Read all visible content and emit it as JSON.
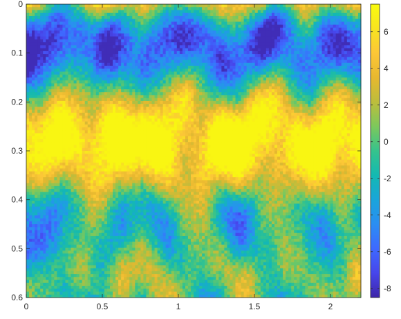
{
  "chart_data": {
    "type": "heatmap",
    "title": "",
    "xlabel": "",
    "ylabel": "",
    "xlim": [
      0,
      2.2
    ],
    "ylim": [
      0,
      0.6
    ],
    "y_direction": "reversed",
    "x_ticks": [
      0,
      0.5,
      1,
      1.5,
      2
    ],
    "x_tick_labels": [
      "0",
      "0.5",
      "1",
      "1.5",
      "2"
    ],
    "y_ticks": [
      0,
      0.1,
      0.2,
      0.3,
      0.4,
      0.5,
      0.6
    ],
    "y_tick_labels": [
      "0",
      "0.1",
      "0.2",
      "0.3",
      "0.4",
      "0.5",
      "0.6"
    ],
    "colorbar": {
      "clim": [
        -8.5,
        7.5
      ],
      "ticks": [
        -8,
        -6,
        -4,
        -2,
        0,
        2,
        4,
        6
      ],
      "tick_labels": [
        "-8",
        "-6",
        "-4",
        "-2",
        "0",
        "2",
        "4",
        "6"
      ],
      "colormap": "parula",
      "stops": [
        "#3e26a8",
        "#4746eb",
        "#3e69ff",
        "#2b8ef2",
        "#1aa5da",
        "#13b9b2",
        "#36c38c",
        "#7dc85c",
        "#bdbd3c",
        "#e7b82f",
        "#fcc737",
        "#f8e420",
        "#f9fb0e"
      ]
    },
    "grid": false,
    "legend": "none"
  }
}
